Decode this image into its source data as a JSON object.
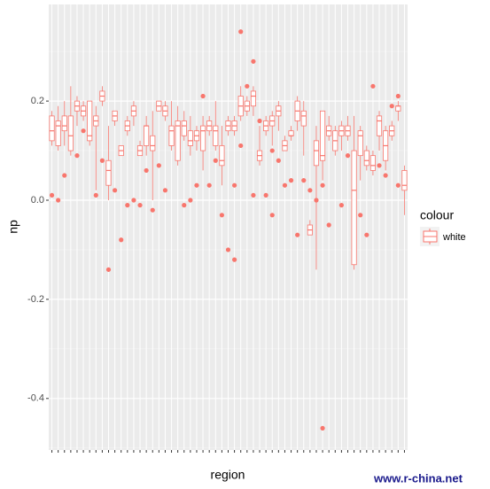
{
  "chart_data": {
    "type": "boxplot",
    "x_label": "region",
    "y_label": "np",
    "legend_title": "colour",
    "legend_position": "right",
    "watermark": "www.r-china.net",
    "series": [
      {
        "name": "white",
        "color": "#F8766D"
      }
    ],
    "categories": [
      null,
      null,
      null,
      null,
      null,
      null,
      null,
      null,
      null,
      null,
      null,
      null,
      null,
      null,
      null,
      null,
      null,
      null,
      null,
      null,
      null,
      null,
      null,
      null,
      null,
      null,
      null,
      null,
      null,
      null,
      null,
      null,
      null,
      null,
      null,
      null,
      null,
      null,
      null,
      null,
      null,
      null,
      null,
      null,
      null,
      null,
      null,
      null,
      null,
      null,
      null,
      null,
      null,
      null,
      null,
      null,
      null
    ],
    "boxes": [
      {
        "lower": 0.11,
        "q1": 0.12,
        "median": 0.14,
        "q3": 0.17,
        "upper": 0.18,
        "outliers": [
          0.01
        ]
      },
      {
        "lower": 0.1,
        "q1": 0.11,
        "median": 0.15,
        "q3": 0.16,
        "upper": 0.19,
        "outliers": [
          0.0
        ]
      },
      {
        "lower": 0.11,
        "q1": 0.14,
        "median": 0.15,
        "q3": 0.17,
        "upper": 0.2,
        "outliers": [
          0.05
        ]
      },
      {
        "lower": 0.09,
        "q1": 0.1,
        "median": 0.13,
        "q3": 0.17,
        "upper": 0.23,
        "outliers": []
      },
      {
        "lower": 0.15,
        "q1": 0.18,
        "median": 0.19,
        "q3": 0.2,
        "upper": 0.21,
        "outliers": [
          0.09
        ]
      },
      {
        "lower": 0.16,
        "q1": 0.17,
        "median": 0.18,
        "q3": 0.19,
        "upper": 0.2,
        "outliers": [
          0.14
        ]
      },
      {
        "lower": 0.11,
        "q1": 0.12,
        "median": 0.13,
        "q3": 0.2,
        "upper": 0.2,
        "outliers": []
      },
      {
        "lower": 0.02,
        "q1": 0.15,
        "median": 0.16,
        "q3": 0.17,
        "upper": 0.19,
        "outliers": [
          0.01
        ]
      },
      {
        "lower": 0.19,
        "q1": 0.2,
        "median": 0.21,
        "q3": 0.22,
        "upper": 0.23,
        "outliers": [
          0.08
        ]
      },
      {
        "lower": 0.0,
        "q1": 0.03,
        "median": 0.06,
        "q3": 0.08,
        "upper": 0.15,
        "outliers": [
          -0.14
        ]
      },
      {
        "lower": 0.15,
        "q1": 0.16,
        "median": 0.17,
        "q3": 0.18,
        "upper": 0.18,
        "outliers": [
          0.02
        ]
      },
      {
        "lower": 0.09,
        "q1": 0.09,
        "median": 0.1,
        "q3": 0.11,
        "upper": 0.11,
        "outliers": [
          -0.08
        ]
      },
      {
        "lower": 0.13,
        "q1": 0.14,
        "median": 0.15,
        "q3": 0.16,
        "upper": 0.17,
        "outliers": [
          -0.01
        ]
      },
      {
        "lower": 0.15,
        "q1": 0.17,
        "median": 0.18,
        "q3": 0.19,
        "upper": 0.2,
        "outliers": [
          0.0
        ]
      },
      {
        "lower": 0.09,
        "q1": 0.09,
        "median": 0.1,
        "q3": 0.11,
        "upper": 0.12,
        "outliers": [
          -0.01
        ]
      },
      {
        "lower": 0.09,
        "q1": 0.11,
        "median": 0.15,
        "q3": 0.15,
        "upper": 0.17,
        "outliers": [
          0.06
        ]
      },
      {
        "lower": 0.0,
        "q1": 0.1,
        "median": 0.11,
        "q3": 0.13,
        "upper": 0.18,
        "outliers": [
          -0.02
        ]
      },
      {
        "lower": 0.18,
        "q1": 0.18,
        "median": 0.19,
        "q3": 0.2,
        "upper": 0.2,
        "outliers": [
          0.07
        ]
      },
      {
        "lower": 0.16,
        "q1": 0.17,
        "median": 0.18,
        "q3": 0.19,
        "upper": 0.2,
        "outliers": [
          0.02
        ]
      },
      {
        "lower": 0.1,
        "q1": 0.11,
        "median": 0.14,
        "q3": 0.15,
        "upper": 0.2,
        "outliers": []
      },
      {
        "lower": 0.07,
        "q1": 0.08,
        "median": 0.15,
        "q3": 0.16,
        "upper": 0.19,
        "outliers": []
      },
      {
        "lower": 0.12,
        "q1": 0.13,
        "median": 0.15,
        "q3": 0.16,
        "upper": 0.18,
        "outliers": [
          -0.01
        ]
      },
      {
        "lower": 0.09,
        "q1": 0.11,
        "median": 0.12,
        "q3": 0.14,
        "upper": 0.17,
        "outliers": [
          0.0
        ]
      },
      {
        "lower": 0.1,
        "q1": 0.12,
        "median": 0.13,
        "q3": 0.14,
        "upper": 0.15,
        "outliers": [
          0.03
        ]
      },
      {
        "lower": 0.06,
        "q1": 0.1,
        "median": 0.14,
        "q3": 0.15,
        "upper": 0.17,
        "outliers": [
          0.21
        ]
      },
      {
        "lower": 0.13,
        "q1": 0.14,
        "median": 0.15,
        "q3": 0.16,
        "upper": 0.17,
        "outliers": [
          0.03
        ]
      },
      {
        "lower": 0.1,
        "q1": 0.11,
        "median": 0.14,
        "q3": 0.15,
        "upper": 0.2,
        "outliers": [
          0.08
        ]
      },
      {
        "lower": 0.03,
        "q1": 0.07,
        "median": 0.08,
        "q3": 0.11,
        "upper": 0.15,
        "outliers": [
          -0.03
        ]
      },
      {
        "lower": 0.13,
        "q1": 0.14,
        "median": 0.15,
        "q3": 0.16,
        "upper": 0.17,
        "outliers": [
          -0.1
        ]
      },
      {
        "lower": 0.13,
        "q1": 0.14,
        "median": 0.15,
        "q3": 0.16,
        "upper": 0.17,
        "outliers": [
          0.03,
          -0.12
        ]
      },
      {
        "lower": 0.16,
        "q1": 0.17,
        "median": 0.19,
        "q3": 0.21,
        "upper": 0.23,
        "outliers": [
          0.34,
          0.11
        ]
      },
      {
        "lower": 0.17,
        "q1": 0.18,
        "median": 0.19,
        "q3": 0.2,
        "upper": 0.21,
        "outliers": [
          0.23
        ]
      },
      {
        "lower": 0.17,
        "q1": 0.19,
        "median": 0.21,
        "q3": 0.22,
        "upper": 0.23,
        "outliers": [
          0.28,
          0.01
        ]
      },
      {
        "lower": 0.07,
        "q1": 0.08,
        "median": 0.09,
        "q3": 0.1,
        "upper": 0.15,
        "outliers": [
          0.16
        ]
      },
      {
        "lower": 0.13,
        "q1": 0.14,
        "median": 0.15,
        "q3": 0.16,
        "upper": 0.17,
        "outliers": [
          0.01
        ]
      },
      {
        "lower": 0.11,
        "q1": 0.15,
        "median": 0.16,
        "q3": 0.17,
        "upper": 0.18,
        "outliers": [
          0.1,
          -0.03
        ]
      },
      {
        "lower": 0.14,
        "q1": 0.17,
        "median": 0.18,
        "q3": 0.19,
        "upper": 0.2,
        "outliers": [
          0.08
        ]
      },
      {
        "lower": 0.1,
        "q1": 0.1,
        "median": 0.11,
        "q3": 0.12,
        "upper": 0.13,
        "outliers": [
          0.03
        ]
      },
      {
        "lower": 0.12,
        "q1": 0.13,
        "median": 0.13,
        "q3": 0.14,
        "upper": 0.15,
        "outliers": [
          0.04
        ]
      },
      {
        "lower": 0.14,
        "q1": 0.16,
        "median": 0.18,
        "q3": 0.2,
        "upper": 0.21,
        "outliers": [
          -0.07
        ]
      },
      {
        "lower": 0.09,
        "q1": 0.15,
        "median": 0.17,
        "q3": 0.18,
        "upper": 0.2,
        "outliers": [
          0.04
        ]
      },
      {
        "lower": -0.07,
        "q1": -0.07,
        "median": -0.06,
        "q3": -0.05,
        "upper": -0.04,
        "outliers": [
          0.02
        ]
      },
      {
        "lower": -0.14,
        "q1": 0.07,
        "median": 0.1,
        "q3": 0.12,
        "upper": 0.15,
        "outliers": [
          0.0
        ]
      },
      {
        "lower": 0.04,
        "q1": 0.08,
        "median": 0.09,
        "q3": 0.18,
        "upper": 0.18,
        "outliers": [
          0.03,
          -0.46
        ]
      },
      {
        "lower": 0.12,
        "q1": 0.13,
        "median": 0.14,
        "q3": 0.15,
        "upper": 0.17,
        "outliers": [
          -0.05
        ]
      },
      {
        "lower": 0.09,
        "q1": 0.1,
        "median": 0.12,
        "q3": 0.14,
        "upper": 0.15,
        "outliers": []
      },
      {
        "lower": 0.1,
        "q1": 0.13,
        "median": 0.14,
        "q3": 0.15,
        "upper": 0.16,
        "outliers": [
          -0.01
        ]
      },
      {
        "lower": 0.12,
        "q1": 0.13,
        "median": 0.14,
        "q3": 0.15,
        "upper": 0.17,
        "outliers": [
          0.09
        ]
      },
      {
        "lower": -0.14,
        "q1": -0.13,
        "median": 0.02,
        "q3": 0.1,
        "upper": 0.17,
        "outliers": []
      },
      {
        "lower": 0.04,
        "q1": 0.09,
        "median": 0.13,
        "q3": 0.14,
        "upper": 0.15,
        "outliers": [
          -0.03
        ]
      },
      {
        "lower": 0.06,
        "q1": 0.07,
        "median": 0.08,
        "q3": 0.1,
        "upper": 0.11,
        "outliers": [
          -0.07
        ]
      },
      {
        "lower": 0.05,
        "q1": 0.06,
        "median": 0.07,
        "q3": 0.09,
        "upper": 0.1,
        "outliers": [
          0.23
        ]
      },
      {
        "lower": 0.1,
        "q1": 0.13,
        "median": 0.16,
        "q3": 0.17,
        "upper": 0.18,
        "outliers": [
          0.07
        ]
      },
      {
        "lower": 0.06,
        "q1": 0.08,
        "median": 0.11,
        "q3": 0.14,
        "upper": 0.15,
        "outliers": [
          0.05
        ]
      },
      {
        "lower": 0.12,
        "q1": 0.13,
        "median": 0.14,
        "q3": 0.15,
        "upper": 0.16,
        "outliers": [
          0.19
        ]
      },
      {
        "lower": 0.16,
        "q1": 0.18,
        "median": 0.19,
        "q3": 0.19,
        "upper": 0.2,
        "outliers": [
          0.21,
          0.03
        ]
      },
      {
        "lower": -0.03,
        "q1": 0.02,
        "median": 0.03,
        "q3": 0.06,
        "upper": 0.07,
        "outliers": []
      }
    ],
    "ylim": [
      -0.504,
      0.395
    ],
    "yticks": [
      0.2,
      {
        "value": 0,
        "label": "0.0"
      },
      -0.2,
      -0.4
    ],
    "minor_yticks": [
      0.3,
      0.1,
      -0.1,
      -0.3,
      -0.5
    ],
    "grid": true
  }
}
